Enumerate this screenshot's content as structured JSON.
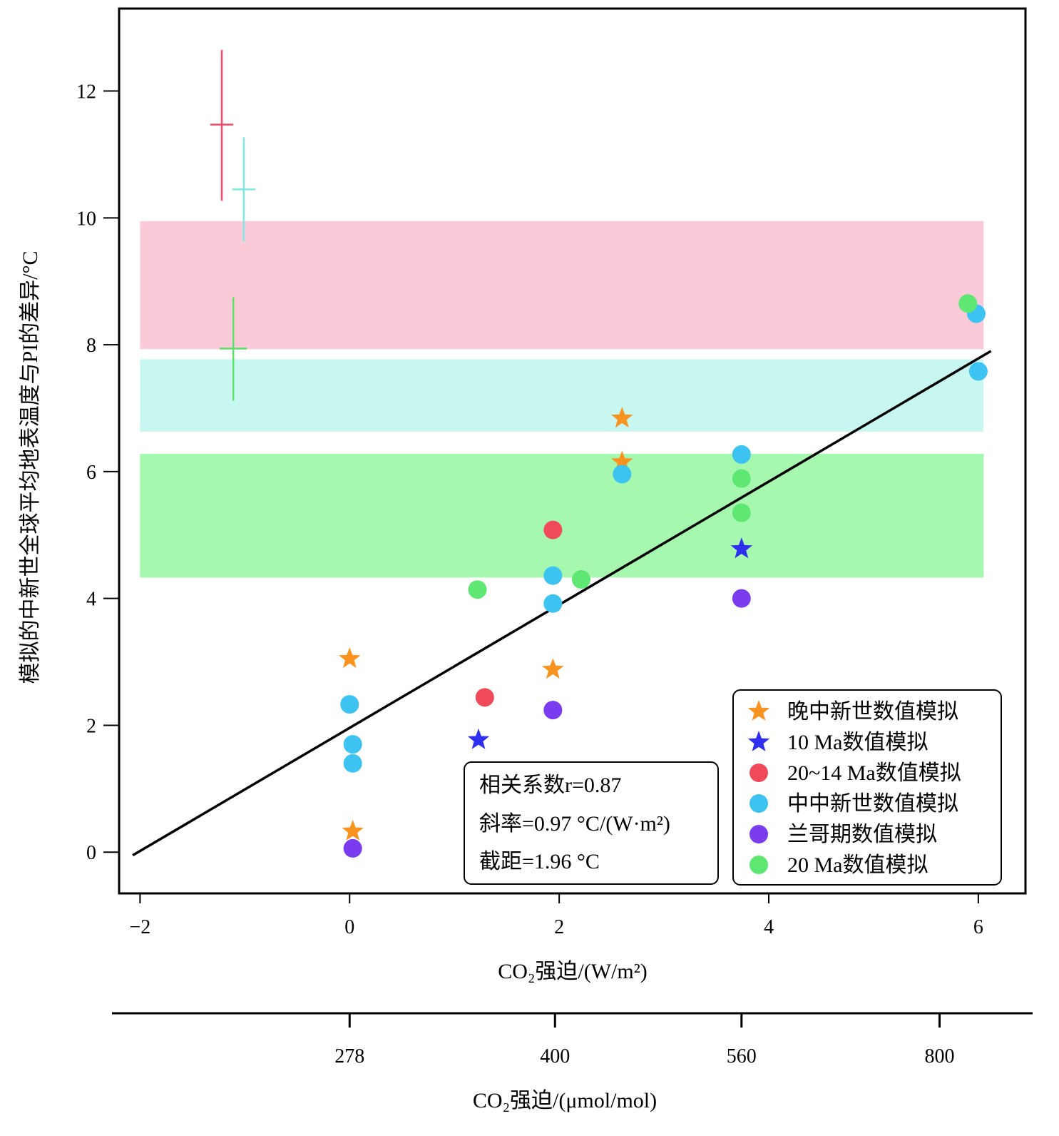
{
  "chart_data": {
    "type": "scatter",
    "xlabel": "CO₂强迫/(W/m²)",
    "ylabel": "模拟的中新世全球平均地表温度与PI的差异/°C",
    "xlim": [
      -2.2,
      6.45
    ],
    "ylim": [
      -0.65,
      13.3
    ],
    "x_ticks": [
      -2,
      0,
      2,
      4,
      6
    ],
    "x_tick_labels": [
      "−2",
      "0",
      "2",
      "4",
      "6"
    ],
    "y_ticks": [
      0,
      2,
      4,
      6,
      8,
      10,
      12
    ],
    "y_tick_labels": [
      "0",
      "2",
      "4",
      "6",
      "8",
      "10",
      "12"
    ],
    "secondary_axis": {
      "label": "CO₂强迫/(μmol/mol)",
      "ticks": [
        {
          "forcing": 0,
          "label": "278"
        },
        {
          "forcing": 1.96,
          "label": "400"
        },
        {
          "forcing": 3.74,
          "label": "560"
        },
        {
          "forcing": 5.63,
          "label": "800"
        }
      ]
    },
    "bands": [
      {
        "y0": 7.93,
        "y1": 9.95,
        "color": "#fbcad8"
      },
      {
        "y0": 6.63,
        "y1": 7.77,
        "color": "#c7f7f0"
      },
      {
        "y0": 4.33,
        "y1": 6.28,
        "color": "#a5f8ad"
      }
    ],
    "bands_x": [
      -2.0,
      6.05
    ],
    "error_crosses": [
      {
        "x": -1.22,
        "y": 11.47,
        "x_err": 0.11,
        "y_low": 10.27,
        "y_high": 12.65,
        "color": "#ee4a6a"
      },
      {
        "x": -1.01,
        "y": 10.45,
        "x_err": 0.11,
        "y_low": 9.63,
        "y_high": 11.27,
        "color": "#7ee8e2"
      },
      {
        "x": -1.11,
        "y": 7.94,
        "x_err": 0.13,
        "y_low": 7.12,
        "y_high": 8.75,
        "color": "#5ee06a"
      }
    ],
    "regression_line": {
      "x0": -2.07,
      "y0": -0.05,
      "x1": 6.12,
      "y1": 7.9
    },
    "stats_box": {
      "line1": "相关系数r=0.87",
      "line2": "斜率=0.97 °C/(W·m²)",
      "line3": "截距=1.96 °C"
    },
    "legend_position": "bottom-right",
    "series": [
      {
        "name": "晚中新世数值模拟",
        "marker": "star",
        "color": "#f7931e",
        "points": [
          [
            0.0,
            3.05
          ],
          [
            0.03,
            0.33
          ],
          [
            1.94,
            2.88
          ],
          [
            2.6,
            6.84
          ],
          [
            2.6,
            6.15
          ]
        ]
      },
      {
        "name": "10 Ma数值模拟",
        "marker": "star",
        "color": "#2f2ff0",
        "points": [
          [
            1.23,
            1.77
          ],
          [
            3.74,
            4.78
          ]
        ]
      },
      {
        "name": "20~14 Ma数值模拟",
        "marker": "circle",
        "color": "#f04a5a",
        "points": [
          [
            1.94,
            5.08
          ],
          [
            1.29,
            2.44
          ]
        ]
      },
      {
        "name": "中中新世数值模拟",
        "marker": "circle",
        "color": "#3cc3f2",
        "points": [
          [
            0.0,
            2.33
          ],
          [
            0.03,
            1.7
          ],
          [
            0.03,
            1.4
          ],
          [
            1.94,
            4.36
          ],
          [
            1.94,
            3.92
          ],
          [
            2.6,
            5.96
          ],
          [
            3.74,
            6.27
          ],
          [
            5.98,
            8.49
          ],
          [
            6.0,
            7.58
          ]
        ]
      },
      {
        "name": "兰哥期数值模拟",
        "marker": "circle",
        "color": "#7b3bef",
        "points": [
          [
            0.03,
            0.06
          ],
          [
            1.94,
            2.24
          ],
          [
            3.74,
            4.0
          ]
        ]
      },
      {
        "name": "20 Ma数值模拟",
        "marker": "circle",
        "color": "#5ee873",
        "points": [
          [
            1.22,
            4.14
          ],
          [
            2.21,
            4.3
          ],
          [
            3.74,
            5.89
          ],
          [
            3.74,
            5.35
          ],
          [
            5.9,
            8.65
          ]
        ]
      }
    ]
  }
}
